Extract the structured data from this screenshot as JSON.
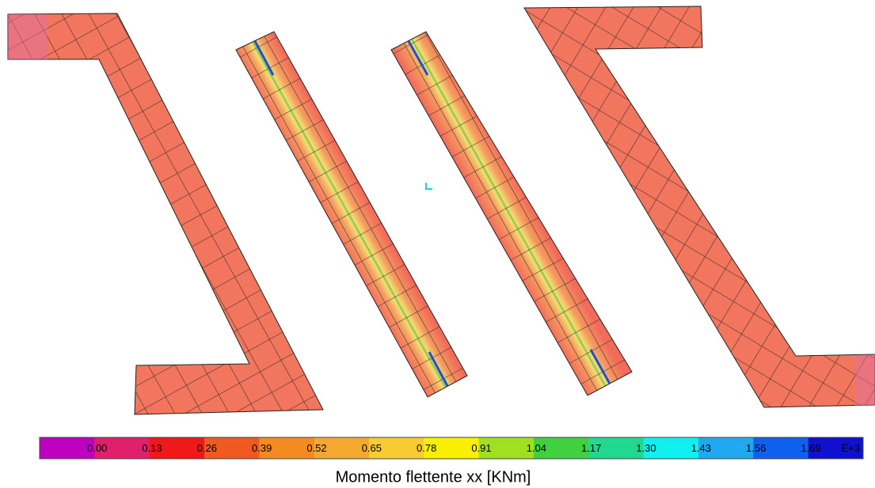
{
  "legend": {
    "labels": [
      "0.00",
      "0.13",
      "0.26",
      "0.39",
      "0.52",
      "0.65",
      "0.78",
      "0.91",
      "1.04",
      "1.17",
      "1.30",
      "1.43",
      "1.56",
      "1.69"
    ],
    "exponent": "E+3",
    "colors": [
      "#c000c0",
      "#e0206a",
      "#f01818",
      "#f05a20",
      "#f58a20",
      "#f5a830",
      "#f8cc30",
      "#f8f000",
      "#a0e020",
      "#40d040",
      "#20d890",
      "#10f0f0",
      "#20a8f0",
      "#1060f0",
      "#1010d0"
    ]
  },
  "title": "Momento flettente xx [KNm]"
}
